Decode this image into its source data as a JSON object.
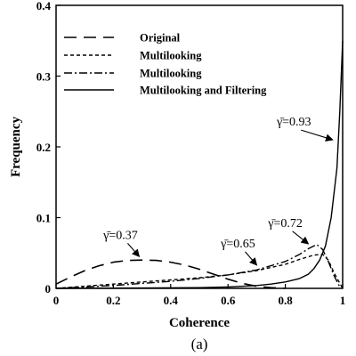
{
  "chart_data": {
    "type": "line",
    "title": "",
    "xlabel": "Coherence",
    "ylabel": "Frequency",
    "caption": "(a)",
    "xlim": [
      0,
      1
    ],
    "ylim": [
      0,
      0.4
    ],
    "xticks": [
      0,
      0.2,
      0.4,
      0.6,
      0.8,
      1
    ],
    "xtick_labels": [
      "0",
      "0.2",
      "0.4",
      "0.6",
      "0.8",
      "1"
    ],
    "yticks": [
      0,
      0.1,
      0.2,
      0.3,
      0.4
    ],
    "ytick_labels": [
      "0",
      "0.1",
      "0.2",
      "0.3",
      "0.4"
    ],
    "grid": false,
    "legend_position": "top-left",
    "series": [
      {
        "name": "Original",
        "dash": "long-dash",
        "x": [
          0,
          0.05,
          0.1,
          0.15,
          0.2,
          0.25,
          0.3,
          0.35,
          0.4,
          0.45,
          0.5,
          0.55,
          0.6,
          0.65,
          0.7,
          0.75,
          0.8
        ],
        "y": [
          0.006,
          0.016,
          0.025,
          0.032,
          0.037,
          0.0395,
          0.04,
          0.0395,
          0.037,
          0.033,
          0.027,
          0.02,
          0.013,
          0.007,
          0.003,
          0.001,
          0
        ]
      },
      {
        "name": "Multilooking",
        "dash": "short-dash",
        "x": [
          0,
          0.1,
          0.2,
          0.3,
          0.4,
          0.5,
          0.6,
          0.7,
          0.8,
          0.85,
          0.9,
          0.93,
          0.95,
          0.97,
          1.0
        ],
        "y": [
          0,
          0.003,
          0.006,
          0.009,
          0.012,
          0.015,
          0.019,
          0.025,
          0.034,
          0.041,
          0.047,
          0.048,
          0.04,
          0.022,
          0
        ]
      },
      {
        "name": "Multilooking",
        "dash": "dash-dot",
        "x": [
          0,
          0.1,
          0.2,
          0.3,
          0.4,
          0.5,
          0.6,
          0.7,
          0.8,
          0.85,
          0.88,
          0.91,
          0.93,
          0.95,
          0.97,
          0.99
        ],
        "y": [
          0,
          0.002,
          0.004,
          0.007,
          0.01,
          0.014,
          0.019,
          0.026,
          0.038,
          0.048,
          0.056,
          0.062,
          0.055,
          0.038,
          0.018,
          0.002
        ]
      },
      {
        "name": "Multilooking and Filtering",
        "dash": "solid",
        "x": [
          0,
          0.3,
          0.5,
          0.6,
          0.7,
          0.75,
          0.8,
          0.85,
          0.88,
          0.9,
          0.92,
          0.94,
          0.96,
          0.98,
          0.99,
          1.0
        ],
        "y": [
          0,
          0.0005,
          0.001,
          0.002,
          0.004,
          0.006,
          0.009,
          0.014,
          0.02,
          0.028,
          0.04,
          0.06,
          0.1,
          0.17,
          0.25,
          0.35
        ]
      }
    ],
    "annotations": [
      {
        "text": "γ̄=0.93",
        "x": 0.83,
        "y": 0.23,
        "arrow_to": [
          0.965,
          0.21
        ]
      },
      {
        "text": "γ̄=0.72",
        "x": 0.8,
        "y": 0.087,
        "arrow_to": [
          0.88,
          0.063
        ]
      },
      {
        "text": "γ̄=0.65",
        "x": 0.635,
        "y": 0.058,
        "arrow_to": [
          0.7,
          0.033
        ]
      },
      {
        "text": "γ̄=0.37",
        "x": 0.225,
        "y": 0.07,
        "arrow_to": [
          0.29,
          0.045
        ]
      }
    ]
  }
}
